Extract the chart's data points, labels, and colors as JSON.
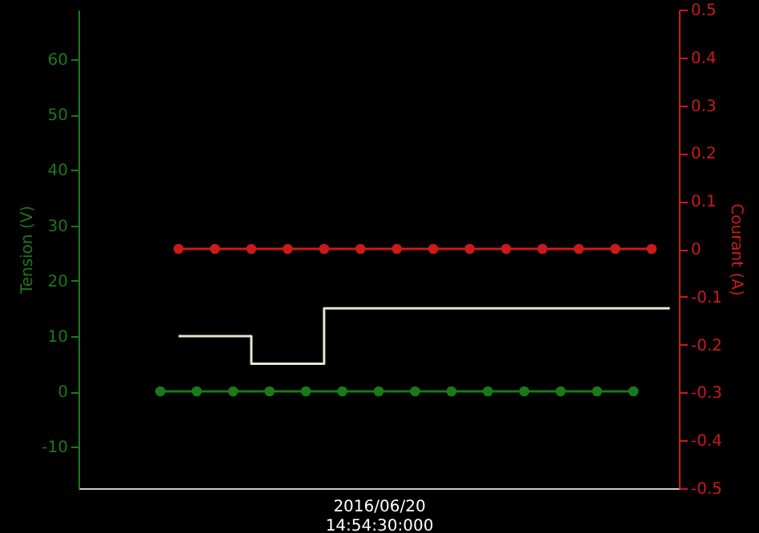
{
  "chart_data": {
    "type": "line",
    "xlabel": "2016/06/20\n14:54:30:000",
    "ylabel": "Tension (V)",
    "y2label": "Courant (A)",
    "categories": [
      null,
      null,
      null,
      null,
      null,
      null,
      null,
      null,
      null,
      null,
      null,
      null,
      null,
      null,
      null,
      null,
      null,
      null,
      null,
      null,
      null,
      null,
      null,
      null,
      null,
      null,
      null,
      null,
      null,
      null,
      null,
      null,
      null
    ],
    "ylim": [
      -17.5,
      69
    ],
    "yticks": [
      -10,
      0,
      10,
      20,
      30,
      40,
      50,
      60
    ],
    "y2lim": [
      -0.5,
      0.5
    ],
    "y2ticks": [
      -0.5,
      -0.4,
      -0.3,
      -0.2,
      -0.1,
      0,
      0.1,
      0.2,
      0.3,
      0.4,
      0.5
    ],
    "grid": false,
    "series": [
      {
        "marker": "circle",
        "color": "#1a7a1a",
        "values": [
          null,
          null,
          null,
          null,
          0,
          null,
          0,
          null,
          0,
          null,
          0,
          null,
          0,
          null,
          0,
          null,
          0,
          null,
          0,
          null,
          0,
          null,
          0,
          null,
          0,
          null,
          0,
          null,
          0,
          null,
          0,
          null,
          null
        ]
      },
      {
        "marker": "circle",
        "axis": "y2",
        "color": "#cc1a1a",
        "values": [
          null,
          null,
          null,
          null,
          null,
          0,
          null,
          0,
          null,
          0,
          null,
          0,
          null,
          0,
          null,
          0,
          null,
          0,
          null,
          0,
          null,
          0,
          null,
          0,
          null,
          0,
          null,
          0,
          null,
          0,
          null,
          0,
          null
        ]
      },
      {
        "type": "step",
        "marker": "none",
        "color": "#e6e6cc",
        "values": [
          null,
          null,
          null,
          null,
          null,
          10,
          null,
          null,
          null,
          5,
          null,
          null,
          null,
          15,
          null,
          null,
          null,
          null,
          null,
          null,
          null,
          null,
          null,
          null,
          null,
          null,
          null,
          null,
          null,
          null,
          null,
          null,
          15
        ]
      }
    ]
  }
}
